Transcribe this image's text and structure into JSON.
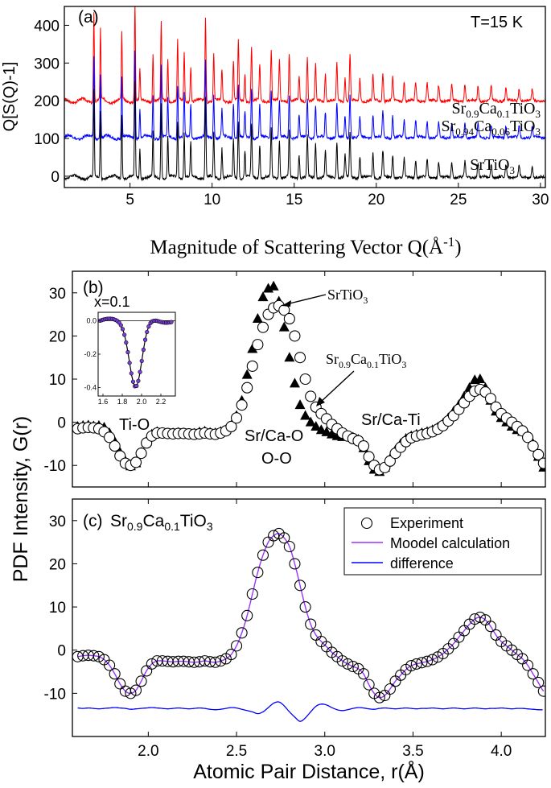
{
  "chart_data": [
    {
      "type": "line",
      "panel": "(a)",
      "annotation": "T=15 K",
      "xlabel_main": "Magnitude of Scattering Vector Q(",
      "xlabel_unit": "Å",
      "xlabel_sup": "-1",
      "xlabel_close": ")",
      "ylabel": "Q[S(Q)-1]",
      "xlim": [
        1,
        30.3
      ],
      "ylim": [
        -30,
        450
      ],
      "xticks": [
        5,
        10,
        15,
        20,
        25,
        30
      ],
      "yticks": [
        0,
        100,
        200,
        300,
        400
      ],
      "series": [
        {
          "label_parts": [
            [
              "Sr",
              ""
            ],
            [
              "0.9",
              "sub"
            ],
            [
              "Ca",
              ""
            ],
            [
              "0.1",
              "sub"
            ],
            [
              "TiO",
              ""
            ],
            [
              "3",
              "sub"
            ]
          ],
          "color": "#ff0000",
          "baseline": 200
        },
        {
          "label_parts": [
            [
              "Sr",
              ""
            ],
            [
              "0.94",
              "sub"
            ],
            [
              "Ca",
              ""
            ],
            [
              "0.06",
              "sub"
            ],
            [
              "TiO",
              ""
            ],
            [
              "3",
              "sub"
            ]
          ],
          "color": "#0000ff",
          "baseline": 103
        },
        {
          "label_parts": [
            [
              "SrTiO",
              ""
            ],
            [
              "3",
              "sub"
            ]
          ],
          "color": "#000000",
          "baseline": -3
        }
      ],
      "bragg_peaks_Q": [
        2.8,
        3.2,
        4.5,
        5.3,
        5.6,
        6.4,
        6.9,
        7.3,
        7.9,
        8.3,
        8.7,
        9.6,
        10.1,
        10.6,
        11.3,
        11.6,
        12.0,
        12.4,
        12.9,
        13.6,
        14.1,
        14.7,
        15.3,
        15.8,
        16.3,
        16.9,
        17.6,
        18.1,
        18.4,
        19.0,
        19.8,
        20.4,
        21.0,
        21.7,
        22.4,
        23.1,
        23.8,
        24.6,
        25.4,
        26.2,
        27.0,
        27.9,
        28.7,
        29.5
      ],
      "bragg_peak_heights": [
        230,
        180,
        170,
        250,
        80,
        120,
        200,
        110,
        150,
        120,
        90,
        210,
        120,
        80,
        100,
        150,
        70,
        140,
        90,
        130,
        100,
        120,
        60,
        110,
        90,
        70,
        95,
        60,
        120,
        55,
        65,
        70,
        60,
        50,
        45,
        45,
        40,
        40,
        42,
        38,
        35,
        33,
        30,
        28
      ]
    },
    {
      "type": "scatter",
      "panel": "(b)",
      "xlim": [
        1.57,
        4.25
      ],
      "ylim": [
        -15,
        35
      ],
      "yticks": [
        -10,
        0,
        10,
        20,
        30
      ],
      "annotations": [
        {
          "text_parts": [
            [
              "SrTiO",
              ""
            ],
            [
              "3",
              "sub"
            ]
          ],
          "role": "srtio3-label"
        },
        {
          "text_parts": [
            [
              "Sr",
              ""
            ],
            [
              "0.9",
              "sub"
            ],
            [
              "Ca",
              ""
            ],
            [
              "0.1",
              "sub"
            ],
            [
              "TiO",
              ""
            ],
            [
              "3",
              "sub"
            ]
          ],
          "role": "srca-label"
        },
        {
          "text_parts": [
            [
              "Ti-O",
              ""
            ]
          ],
          "role": "ti-o-label"
        },
        {
          "text_parts": [
            [
              "Sr/Ca-O",
              ""
            ]
          ],
          "role": "srca-o-label"
        },
        {
          "text_parts": [
            [
              "O-O",
              ""
            ]
          ],
          "role": "o-o-label"
        },
        {
          "text_parts": [
            [
              "Sr/Ca-Ti",
              ""
            ]
          ],
          "role": "srca-ti-label"
        }
      ],
      "inset": {
        "title": "x=0.1",
        "xlim": [
          1.55,
          2.35
        ],
        "ylim": [
          -0.45,
          0.05
        ],
        "xticks": [
          "1.6",
          "1.8",
          "2.0",
          "2.2"
        ],
        "yticks": [
          "0.0",
          "-0.2",
          "-0.4"
        ]
      },
      "x": [
        1.6,
        1.63,
        1.66,
        1.69,
        1.72,
        1.75,
        1.78,
        1.81,
        1.84,
        1.87,
        1.9,
        1.93,
        1.96,
        1.99,
        2.02,
        2.05,
        2.08,
        2.11,
        2.14,
        2.17,
        2.2,
        2.23,
        2.26,
        2.29,
        2.32,
        2.35,
        2.38,
        2.41,
        2.44,
        2.47,
        2.5,
        2.53,
        2.56,
        2.59,
        2.62,
        2.65,
        2.68,
        2.71,
        2.74,
        2.77,
        2.8,
        2.83,
        2.86,
        2.89,
        2.92,
        2.95,
        2.98,
        3.01,
        3.04,
        3.07,
        3.1,
        3.13,
        3.16,
        3.19,
        3.22,
        3.25,
        3.28,
        3.31,
        3.34,
        3.37,
        3.4,
        3.43,
        3.46,
        3.49,
        3.52,
        3.55,
        3.58,
        3.61,
        3.64,
        3.67,
        3.7,
        3.73,
        3.76,
        3.79,
        3.82,
        3.85,
        3.88,
        3.91,
        3.94,
        3.97,
        4.0,
        4.03,
        4.06,
        4.09,
        4.12,
        4.15,
        4.18,
        4.21,
        4.24
      ],
      "series": [
        {
          "name": "SrTiO3",
          "marker": "triangle",
          "y": [
            -1,
            -0.8,
            -0.7,
            -0.9,
            -0.8,
            -1.2,
            -2.5,
            -4.5,
            -7,
            -9,
            -10.2,
            -9.5,
            -7,
            -4.5,
            -2.8,
            -2.2,
            -2.4,
            -2.6,
            -2.5,
            -2.4,
            -2.5,
            -2.7,
            -2.6,
            -2.3,
            -2.1,
            -2.4,
            -2.5,
            -2.2,
            -1.8,
            -0.8,
            1.5,
            5,
            11,
            17,
            24,
            29,
            31,
            31.5,
            28,
            22,
            15,
            9,
            4,
            1.5,
            0,
            -1,
            -1.8,
            -2.3,
            -2.8,
            -3.2,
            -3.4,
            -3.3,
            -3.5,
            -4,
            -6,
            -9,
            -11,
            -11.5,
            -10.5,
            -8.5,
            -6.5,
            -5,
            -3.8,
            -3.2,
            -2.8,
            -2.5,
            -2.2,
            -1.8,
            -1.2,
            -0.3,
            1,
            2.5,
            4,
            6,
            8,
            9.8,
            10,
            8,
            5,
            2.5,
            1,
            0,
            -1,
            -1.8,
            -2.2,
            -3,
            -5,
            -8,
            -10.5
          ]
        },
        {
          "name": "Sr0.9Ca0.1TiO3",
          "marker": "circle",
          "y": [
            -1.5,
            -1.3,
            -1.2,
            -1.3,
            -1.5,
            -2.2,
            -3.5,
            -5.5,
            -7.8,
            -9.5,
            -10,
            -9.3,
            -7.2,
            -4.8,
            -3.2,
            -2.5,
            -2.5,
            -2.6,
            -2.7,
            -2.6,
            -2.6,
            -2.7,
            -2.8,
            -2.7,
            -2.5,
            -2.7,
            -2.8,
            -2.5,
            -2,
            -1,
            1,
            4,
            8,
            13,
            18,
            22,
            25,
            26.5,
            27,
            26,
            24,
            20,
            15,
            10,
            6,
            3.5,
            2,
            0.8,
            -0.5,
            -1.5,
            -2.5,
            -3.2,
            -3.8,
            -4.3,
            -5.5,
            -8,
            -10,
            -11,
            -10.5,
            -9,
            -7.2,
            -5.8,
            -4.5,
            -3.6,
            -3.2,
            -2.9,
            -2.6,
            -2.2,
            -1.6,
            -0.8,
            0.3,
            1.5,
            3,
            4.5,
            6,
            7.2,
            7.6,
            7,
            5.5,
            3.5,
            2,
            1,
            0,
            -1,
            -2,
            -3.5,
            -5.5,
            -7.5,
            -9.5
          ]
        }
      ]
    },
    {
      "type": "line",
      "panel": "(c)",
      "title_parts": [
        [
          "Sr",
          ""
        ],
        [
          "0.9",
          "sub"
        ],
        [
          "Ca",
          ""
        ],
        [
          "0.1",
          "sub"
        ],
        [
          "TiO",
          ""
        ],
        [
          "3",
          "sub"
        ]
      ],
      "xlabel": "Atomic Pair Distance, r(Å)",
      "ylabel": "PDF Intensity, G(r)",
      "xlim": [
        1.57,
        4.25
      ],
      "ylim": [
        -20,
        35
      ],
      "xticks": [
        2.0,
        2.5,
        3.0,
        3.5,
        4.0
      ],
      "xtick_labels": [
        "2.0",
        "2.5",
        "3.0",
        "3.5",
        "4.0"
      ],
      "yticks": [
        -10,
        0,
        10,
        20,
        30
      ],
      "legend": [
        "Experiment",
        "Moodel calculation",
        "difference"
      ],
      "legend_position": "top-right",
      "colors": {
        "experiment": "#000000",
        "model": "#9933ff",
        "difference": "#0000ff"
      },
      "difference_offset": -13.5,
      "difference_y": [
        0.1,
        0.0,
        0.1,
        0.0,
        -0.1,
        0.0,
        0.1,
        0.2,
        0.1,
        0.0,
        -0.2,
        -0.1,
        0.0,
        0.1,
        0.2,
        0.1,
        0.0,
        -0.1,
        0.0,
        0.1,
        0.0,
        -0.1,
        0.0,
        0.1,
        0.0,
        -0.2,
        -0.3,
        -0.2,
        0.0,
        0.2,
        0.1,
        -0.2,
        -0.5,
        -0.8,
        -1.2,
        -0.8,
        0.2,
        1.2,
        1.5,
        0.6,
        -0.8,
        -2.0,
        -3.0,
        -2.2,
        -0.8,
        0.5,
        1.0,
        0.8,
        0.2,
        -0.3,
        -0.5,
        -0.3,
        0.0,
        0.2,
        0.1,
        -0.1,
        -0.2,
        0.0,
        0.1,
        0.0,
        -0.1,
        0.0,
        0.1,
        0.0,
        -0.1,
        0.0,
        0.0,
        0.1,
        0.0,
        -0.1,
        0.0,
        0.1,
        0.0,
        -0.1,
        0.0,
        0.1,
        0.0,
        -0.1,
        0.0,
        0.0,
        0.1,
        0.0,
        -0.1,
        0.0,
        0.0,
        -0.1,
        -0.2,
        -0.3,
        -0.3
      ]
    }
  ]
}
